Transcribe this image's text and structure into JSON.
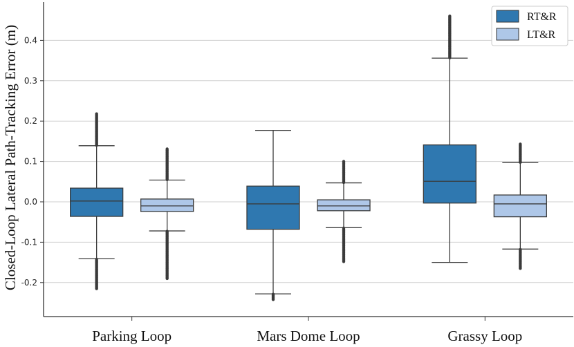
{
  "chart_data": {
    "type": "box",
    "ylabel": "Closed-Loop Lateral Path-Tracking Error (m)",
    "xlabel": "",
    "ylim": [
      -0.28,
      0.49
    ],
    "yticks": [
      -0.2,
      -0.1,
      0.0,
      0.1,
      0.2,
      0.3,
      0.4
    ],
    "ytick_labels": [
      "-0.2",
      "-0.1",
      "0.0",
      "0.1",
      "0.2",
      "0.3",
      "0.4"
    ],
    "grid": "horizontal",
    "legend_position": "top-right",
    "categories": [
      "Parking Loop",
      "Mars Dome Loop",
      "Grassy Loop"
    ],
    "series": [
      {
        "name": "RT&R",
        "color": "#2f78b0",
        "boxes": [
          {
            "whisker_low": -0.141,
            "q1": -0.036,
            "median": 0.002,
            "q3": 0.034,
            "whisker_high": 0.139,
            "outliers_low": [
              -0.215,
              -0.142
            ],
            "outliers_high": [
              0.14,
              0.218
            ]
          },
          {
            "whisker_low": -0.228,
            "q1": -0.068,
            "median": -0.005,
            "q3": 0.039,
            "whisker_high": 0.177,
            "outliers_low": [
              -0.242,
              -0.229
            ],
            "outliers_high": []
          },
          {
            "whisker_low": -0.15,
            "q1": -0.003,
            "median": 0.051,
            "q3": 0.141,
            "whisker_high": 0.356,
            "outliers_low": [],
            "outliers_high": [
              0.357,
              0.46
            ]
          }
        ]
      },
      {
        "name": "LT&R",
        "color": "#aec7e8",
        "boxes": [
          {
            "whisker_low": -0.072,
            "q1": -0.024,
            "median": -0.01,
            "q3": 0.007,
            "whisker_high": 0.054,
            "outliers_low": [
              -0.19,
              -0.073
            ],
            "outliers_high": [
              0.055,
              0.131
            ]
          },
          {
            "whisker_low": -0.064,
            "q1": -0.022,
            "median": -0.01,
            "q3": 0.005,
            "whisker_high": 0.047,
            "outliers_low": [
              -0.148,
              -0.065
            ],
            "outliers_high": [
              0.048,
              0.1
            ]
          },
          {
            "whisker_low": -0.117,
            "q1": -0.037,
            "median": -0.005,
            "q3": 0.017,
            "whisker_high": 0.097,
            "outliers_low": [
              -0.165,
              -0.118
            ],
            "outliers_high": [
              0.098,
              0.143
            ]
          }
        ]
      }
    ]
  }
}
